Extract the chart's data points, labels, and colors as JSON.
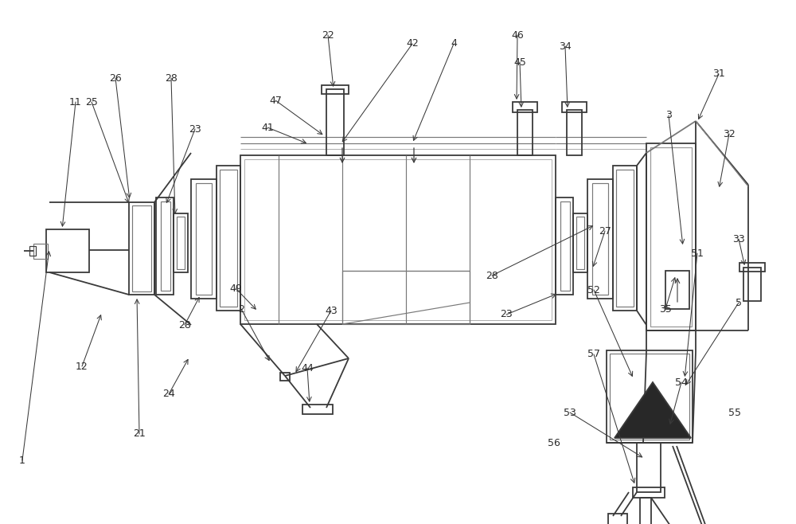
{
  "bg": "#ffffff",
  "lc": "#3a3a3a",
  "lc2": "#787878",
  "lc3": "#a0a0a0",
  "fill_dark": "#2a2a2a",
  "label_c": "#2a2a2a",
  "fig_w": 10.0,
  "fig_h": 6.58,
  "annotations": [
    [
      28,
      578,
      62,
      312,
      "1"
    ],
    [
      103,
      460,
      128,
      392,
      "12"
    ],
    [
      175,
      545,
      172,
      372,
      "21"
    ],
    [
      412,
      44,
      419,
      112,
      "22"
    ],
    [
      245,
      162,
      208,
      258,
      "23"
    ],
    [
      636,
      395,
      702,
      368,
      "23"
    ],
    [
      212,
      495,
      238,
      448,
      "24"
    ],
    [
      95,
      128,
      78,
      288,
      "11"
    ],
    [
      145,
      98,
      163,
      252,
      "26"
    ],
    [
      115,
      128,
      163,
      258,
      "25"
    ],
    [
      760,
      290,
      744,
      338,
      "27"
    ],
    [
      215,
      98,
      220,
      272,
      "28"
    ],
    [
      232,
      408,
      252,
      370,
      "28"
    ],
    [
      618,
      346,
      748,
      282,
      "28"
    ],
    [
      840,
      145,
      858,
      310,
      "3"
    ],
    [
      570,
      55,
      518,
      180,
      "4"
    ],
    [
      928,
      300,
      936,
      336,
      "33"
    ],
    [
      836,
      388,
      849,
      345,
      "35"
    ],
    [
      903,
      93,
      876,
      153,
      "31"
    ],
    [
      916,
      168,
      903,
      238,
      "32"
    ],
    [
      336,
      160,
      388,
      181,
      "41"
    ],
    [
      518,
      55,
      428,
      181,
      "42"
    ],
    [
      416,
      390,
      370,
      470,
      "43"
    ],
    [
      386,
      462,
      389,
      508,
      "44"
    ],
    [
      653,
      78,
      655,
      138,
      "45"
    ],
    [
      650,
      44,
      649,
      128,
      "46"
    ],
    [
      346,
      126,
      408,
      171,
      "47"
    ],
    [
      296,
      362,
      324,
      391,
      "49"
    ],
    [
      876,
      318,
      860,
      476,
      "51"
    ],
    [
      746,
      364,
      796,
      476,
      "52"
    ],
    [
      716,
      518,
      810,
      576,
      "53"
    ],
    [
      856,
      480,
      841,
      536,
      "54"
    ],
    [
      923,
      518,
      920,
      752,
      "55"
    ],
    [
      696,
      556,
      712,
      790,
      "56"
    ],
    [
      746,
      445,
      798,
      610,
      "57"
    ],
    [
      303,
      388,
      340,
      456,
      "2"
    ],
    [
      710,
      58,
      713,
      138,
      "34"
    ],
    [
      928,
      380,
      860,
      486,
      "5"
    ]
  ]
}
